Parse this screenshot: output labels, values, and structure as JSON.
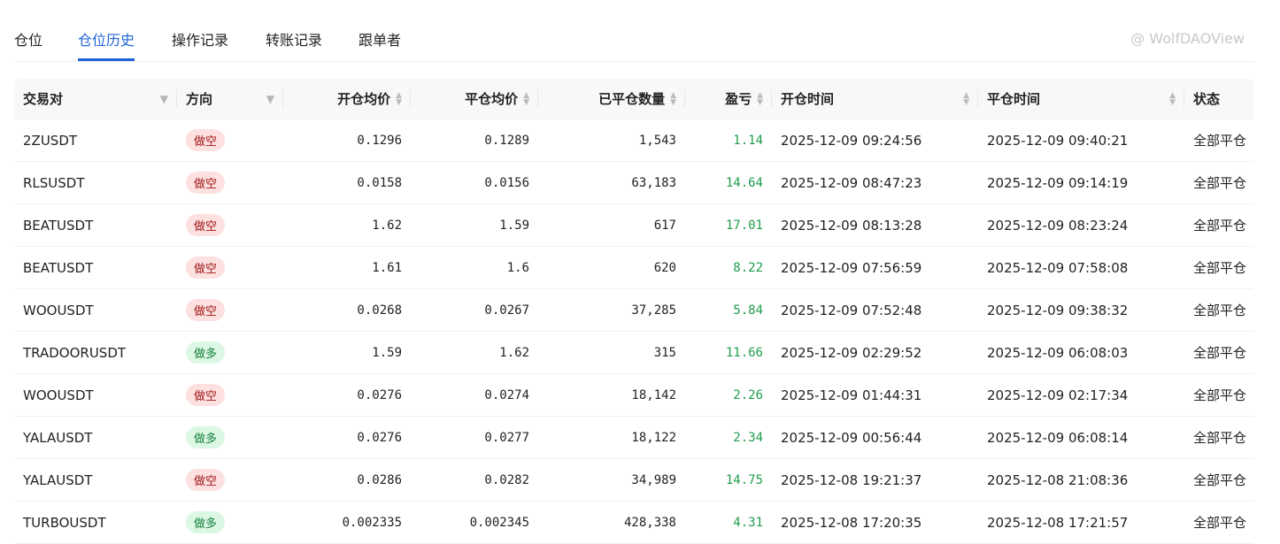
{
  "tabs": [
    {
      "label": "仓位"
    },
    {
      "label": "仓位历史",
      "active": true
    },
    {
      "label": "操作记录"
    },
    {
      "label": "转账记录"
    },
    {
      "label": "跟单者"
    }
  ],
  "columns": [
    "交易对",
    "方向",
    "开仓均价",
    "平仓均价",
    "已平仓数量",
    "盈亏",
    "开仓时间",
    "平仓时间",
    "状态"
  ],
  "colors": {
    "accent": "#1e63d8",
    "profit": "#1f9d4c",
    "short_bg": "#fde0e0",
    "long_bg": "#dcf7e4"
  },
  "rows": [
    [
      "2ZUSDT",
      "做空",
      "0.1296",
      "0.1289",
      "1,543",
      "1.14",
      "2025-12-09 09:24:56",
      "2025-12-09 09:40:21",
      "全部平仓"
    ],
    [
      "RLSUSDT",
      "做空",
      "0.0158",
      "0.0156",
      "63,183",
      "14.64",
      "2025-12-09 08:47:23",
      "2025-12-09 09:14:19",
      "全部平仓"
    ],
    [
      "BEATUSDT",
      "做空",
      "1.62",
      "1.59",
      "617",
      "17.01",
      "2025-12-09 08:13:28",
      "2025-12-09 08:23:24",
      "全部平仓"
    ],
    [
      "BEATUSDT",
      "做空",
      "1.61",
      "1.6",
      "620",
      "8.22",
      "2025-12-09 07:56:59",
      "2025-12-09 07:58:08",
      "全部平仓"
    ],
    [
      "WOOUSDT",
      "做空",
      "0.0268",
      "0.0267",
      "37,285",
      "5.84",
      "2025-12-09 07:52:48",
      "2025-12-09 09:38:32",
      "全部平仓"
    ],
    [
      "TRADOORUSDT",
      "做多",
      "1.59",
      "1.62",
      "315",
      "11.66",
      "2025-12-09 02:29:52",
      "2025-12-09 06:08:03",
      "全部平仓"
    ],
    [
      "WOOUSDT",
      "做空",
      "0.0276",
      "0.0274",
      "18,142",
      "2.26",
      "2025-12-09 01:44:31",
      "2025-12-09 02:17:34",
      "全部平仓"
    ],
    [
      "YALAUSDT",
      "做多",
      "0.0276",
      "0.0277",
      "18,122",
      "2.34",
      "2025-12-09 00:56:44",
      "2025-12-09 06:08:14",
      "全部平仓"
    ],
    [
      "YALAUSDT",
      "做空",
      "0.0286",
      "0.0282",
      "34,989",
      "14.75",
      "2025-12-08 19:21:37",
      "2025-12-08 21:08:36",
      "全部平仓"
    ],
    [
      "TURBOUSDT",
      "做多",
      "0.002335",
      "0.002345",
      "428,338",
      "4.31",
      "2025-12-08 17:20:35",
      "2025-12-08 17:21:57",
      "全部平仓"
    ]
  ],
  "watermark": "@ WolfDAOView"
}
